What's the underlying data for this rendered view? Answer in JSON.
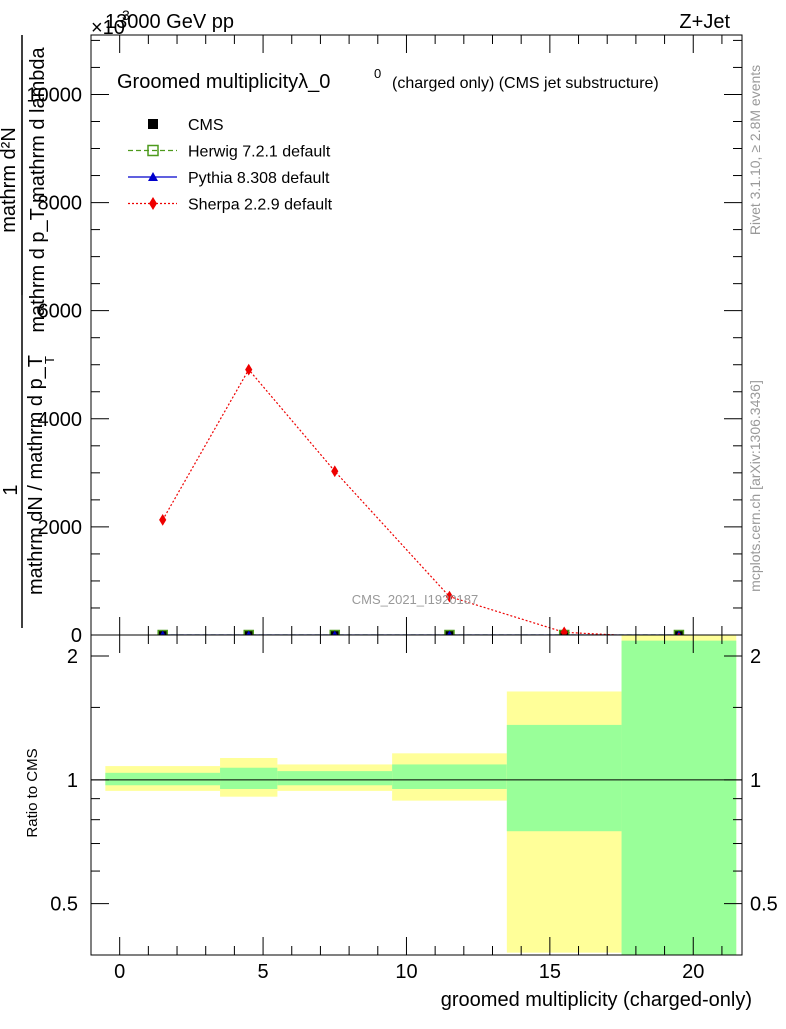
{
  "header": {
    "energy": "13000 GeV pp",
    "process": "Z+Jet",
    "exponent_marker": "×10",
    "exponent_power": "3"
  },
  "side_labels": {
    "rivet": "Rivet 3.1.10, ≥ 2.8M events",
    "mcplots": "mcplots.cern.ch [arXiv:1306.3436]"
  },
  "chart_data": [
    {
      "type": "line",
      "title_main": "Groomed multiplicityλ_0",
      "title_sup": "0",
      "title_suffix": "(charged only) (CMS jet substructure)",
      "ylabel_top": "mathrm d²N",
      "ylabel_top2": "mathrm d p_T mathrm d lambda",
      "ylabel_one": "1",
      "ylabel_bottom": "mathrm dN / mathrm d p_T",
      "ylabel_sub": "T",
      "watermark": "CMS_2021_I1920187",
      "x": [
        1.5,
        4.5,
        7.5,
        11.5,
        15.5,
        19.5
      ],
      "xlim": [
        -1,
        21.7
      ],
      "ylim": [
        0,
        11100
      ],
      "yticks": [
        0,
        2000,
        4000,
        6000,
        8000,
        10000
      ],
      "ytick_labels": [
        "0",
        "2000",
        "4000",
        "6000",
        "8000",
        "10000"
      ],
      "legend_position": "top-left",
      "series": [
        {
          "name": "CMS",
          "marker": "square",
          "color": "#000000",
          "values": [
            0,
            0,
            0,
            0,
            0,
            0
          ]
        },
        {
          "name": "Herwig 7.2.1 default",
          "marker": "open-square",
          "color": "#4d9a1c",
          "style": "dashed",
          "values": [
            0,
            0,
            0,
            0,
            0,
            0
          ]
        },
        {
          "name": "Pythia 8.308 default",
          "marker": "triangle",
          "color": "#0000cc",
          "style": "solid",
          "values": [
            0,
            0,
            0,
            0,
            0,
            0
          ]
        },
        {
          "name": "Sherpa 2.2.9 default",
          "marker": "diamond",
          "color": "#ee0000",
          "style": "dotted",
          "values": [
            2130,
            4910,
            3030,
            710,
            50,
            -60
          ]
        }
      ]
    },
    {
      "type": "area",
      "ylabel": "Ratio to CMS",
      "xlabel": "groomed multiplicity (charged-only)",
      "xlim": [
        -1,
        21.7
      ],
      "ylim": [
        0.375,
        2.25
      ],
      "ticks_y": [
        0.5,
        1,
        2
      ],
      "tick_labels_y": [
        "0.5",
        "1",
        "2"
      ],
      "ticks_x": [
        0,
        5,
        10,
        15,
        20
      ],
      "tick_labels_x": [
        "0",
        "5",
        "10",
        "15",
        "20"
      ],
      "reference_line": 1,
      "bins": [
        {
          "lo": -0.5,
          "hi": 3.5,
          "total": [
            0.94,
            1.08
          ],
          "stat": [
            0.97,
            1.04
          ]
        },
        {
          "lo": 3.5,
          "hi": 5.5,
          "total": [
            0.91,
            1.13
          ],
          "stat": [
            0.95,
            1.07
          ]
        },
        {
          "lo": 5.5,
          "hi": 9.5,
          "total": [
            0.94,
            1.09
          ],
          "stat": [
            0.97,
            1.05
          ]
        },
        {
          "lo": 9.5,
          "hi": 13.5,
          "total": [
            0.89,
            1.16
          ],
          "stat": [
            0.95,
            1.09
          ]
        },
        {
          "lo": 13.5,
          "hi": 17.5,
          "total": [
            0.38,
            1.64
          ],
          "stat": [
            0.75,
            1.36
          ]
        },
        {
          "lo": 17.5,
          "hi": 21.5,
          "total": [
            0.33,
            2.35
          ],
          "stat": [
            0.33,
            2.18
          ]
        }
      ],
      "band_colors": {
        "total": "#ffff99",
        "stat": "#99ff99"
      }
    }
  ]
}
